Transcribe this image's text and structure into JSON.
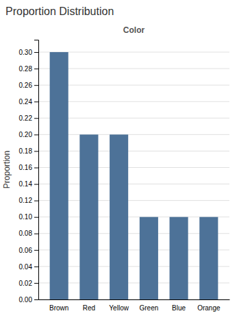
{
  "chart_data": {
    "type": "bar",
    "title": "Proportion Distribution",
    "subtitle": "Color",
    "y_label": "Proportion",
    "categories": [
      "Brown",
      "Red",
      "Yellow",
      "Green",
      "Blue",
      "Orange"
    ],
    "values": [
      0.3,
      0.2,
      0.2,
      0.1,
      0.1,
      0.1
    ],
    "color": "#4d7298",
    "ylim": [
      0.0,
      0.315
    ],
    "yticks": [
      {
        "value": 0.0,
        "label": "0.00"
      },
      0.02,
      0.04,
      0.06,
      0.08,
      {
        "value": 0.1,
        "label": "0.10"
      },
      0.12,
      0.14,
      0.16,
      0.18,
      {
        "value": 0.2,
        "label": "0.20"
      },
      0.22,
      0.24,
      0.26,
      0.28,
      {
        "value": 0.3,
        "label": "0.30"
      }
    ],
    "grid": true
  }
}
